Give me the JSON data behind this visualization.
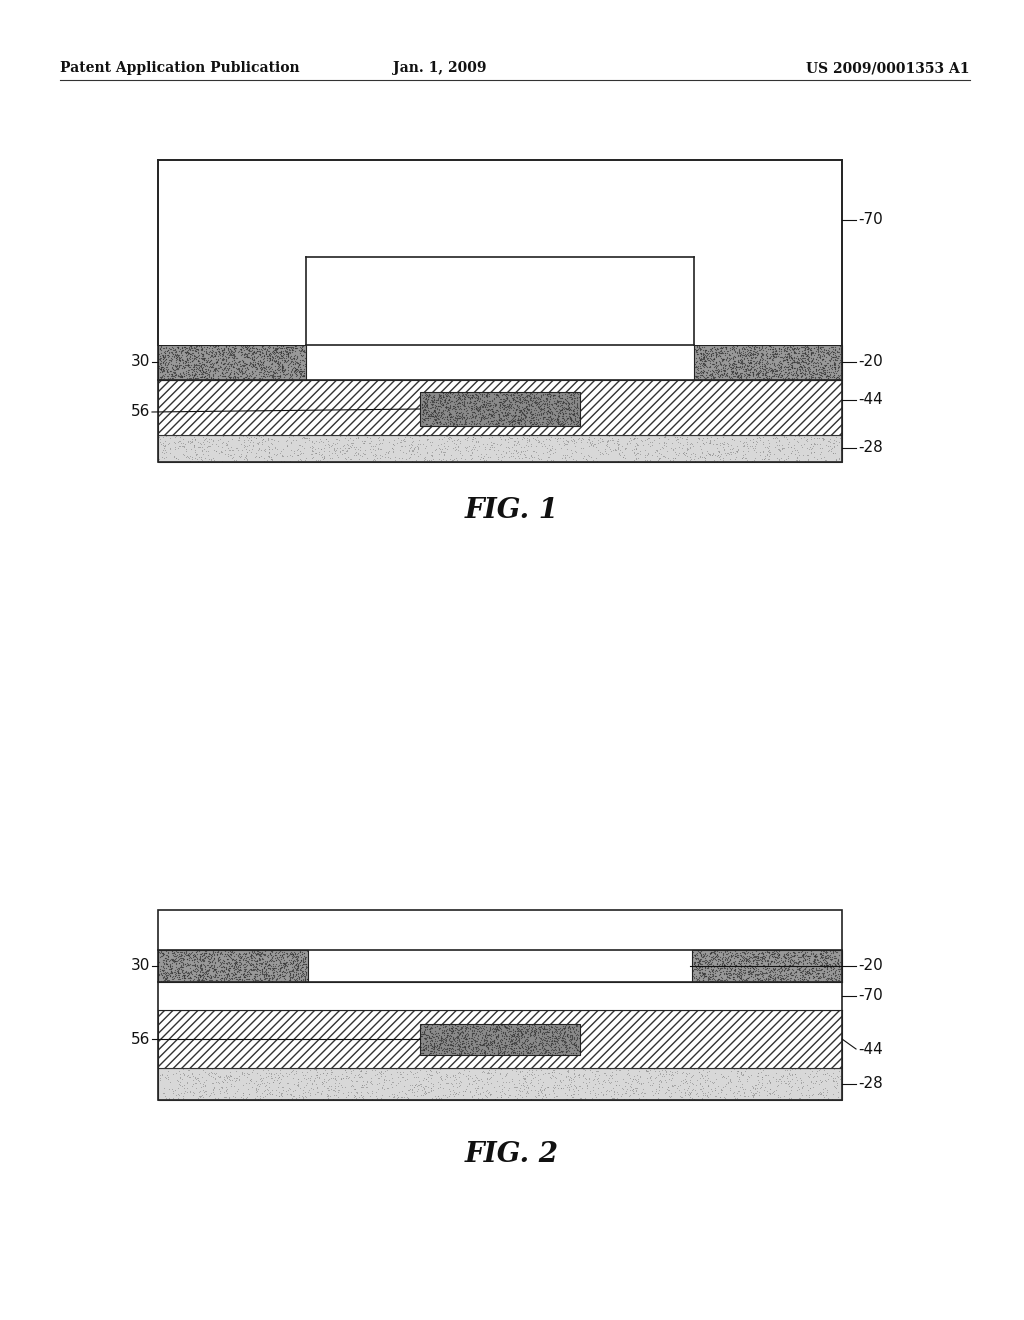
{
  "bg_color": "#ffffff",
  "header_left": "Patent Application Publication",
  "header_center": "Jan. 1, 2009",
  "header_right": "US 2009/0001353 A1",
  "fig1_title": "FIG. 1",
  "fig2_title": "FIG. 2",
  "lw": 1.2,
  "label_fs": 11
}
